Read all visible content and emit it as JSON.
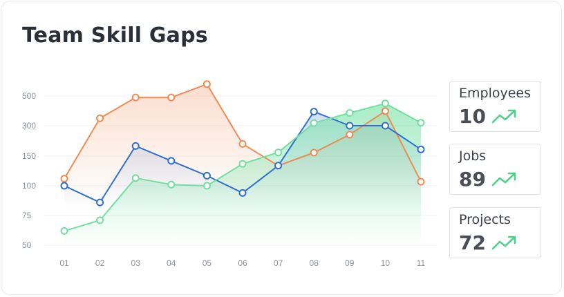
{
  "title": "Team Skill Gaps",
  "colors": {
    "orange": "#ef8a52",
    "blue": "#2f6fcf",
    "green": "#6fe0a0",
    "grid": "#f0f2f5",
    "card_border": "#dfe2e6"
  },
  "stats": [
    {
      "label": "Employees",
      "value": "10",
      "trend_icon": "trending-up-icon"
    },
    {
      "label": "Jobs",
      "value": "89",
      "trend_icon": "trending-up-icon"
    },
    {
      "label": "Projects",
      "value": "72",
      "trend_icon": "trending-up-icon"
    }
  ],
  "chart_data": {
    "type": "line",
    "title": "Team Skill Gaps",
    "xlabel": "",
    "ylabel": "",
    "x": [
      "01",
      "02",
      "03",
      "04",
      "05",
      "06",
      "07",
      "08",
      "09",
      "10",
      "11"
    ],
    "y_ticks": [
      "50",
      "75",
      "100",
      "150",
      "300",
      "500"
    ],
    "grid": true,
    "series": [
      {
        "color": "#ef8a52",
        "values": [
          112,
          350,
          490,
          490,
          580,
          210,
          134,
          167,
          256,
          398,
          107
        ]
      },
      {
        "color": "#2f6fcf",
        "values": [
          100,
          86,
          200,
          142,
          117,
          94,
          134,
          395,
          300,
          300,
          183
        ]
      },
      {
        "color": "#6fe0a0",
        "values": [
          62,
          71,
          113,
          102,
          100,
          137,
          168,
          318,
          386,
          450,
          320
        ]
      }
    ]
  }
}
